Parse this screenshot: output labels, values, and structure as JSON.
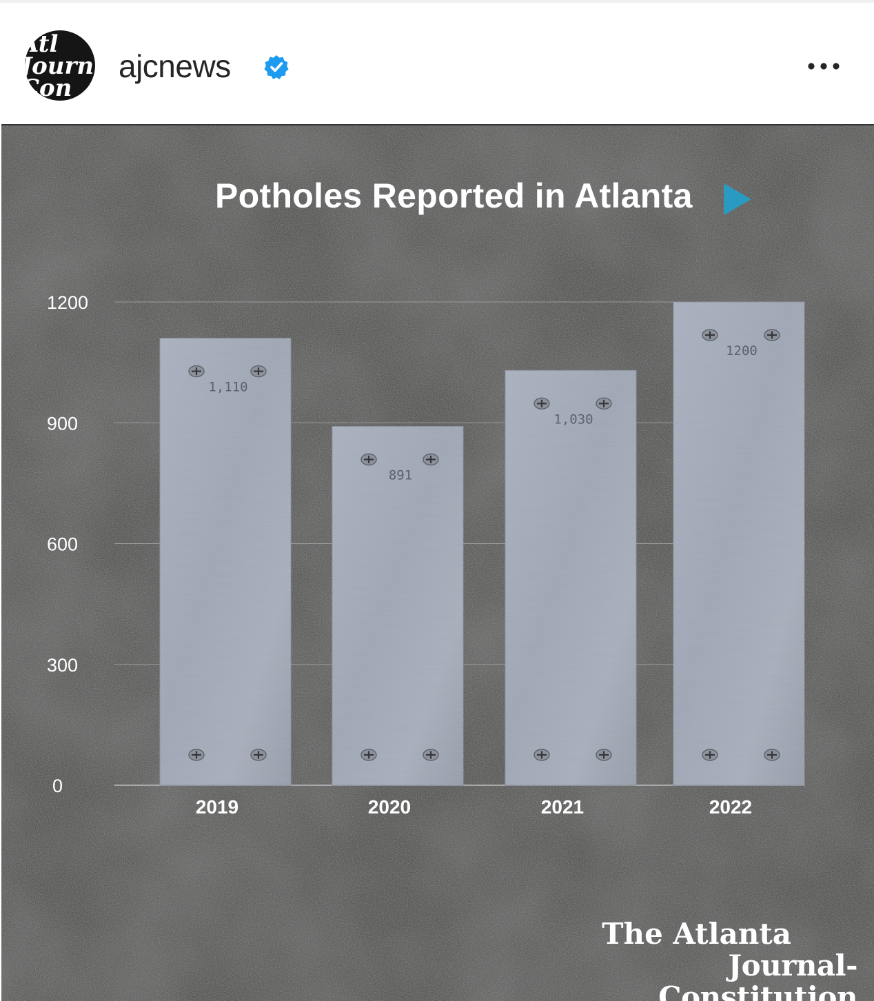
{
  "post": {
    "username": "ajcnews",
    "avatar_text": "Atl\nJourn\nCon",
    "verified_icon": "verified-badge-icon",
    "more_icon": "more-options-icon",
    "verified_color": "#1d9bf0"
  },
  "brand": {
    "logo_line1": "The Atlanta",
    "logo_line2": "Journal-Constitution",
    "play_color": "#2a9bc0"
  },
  "chart_data": {
    "type": "bar",
    "title": "Potholes Reported in Atlanta",
    "categories": [
      "2019",
      "2020",
      "2021",
      "2022"
    ],
    "values": [
      1110,
      891,
      1030,
      1200
    ],
    "value_labels": [
      "1,110",
      "891",
      "1,030",
      "1200"
    ],
    "ylim": [
      0,
      1200
    ],
    "yticks": [
      0,
      300,
      600,
      900,
      1200
    ],
    "grid": true,
    "xlabel": "",
    "ylabel": ""
  }
}
